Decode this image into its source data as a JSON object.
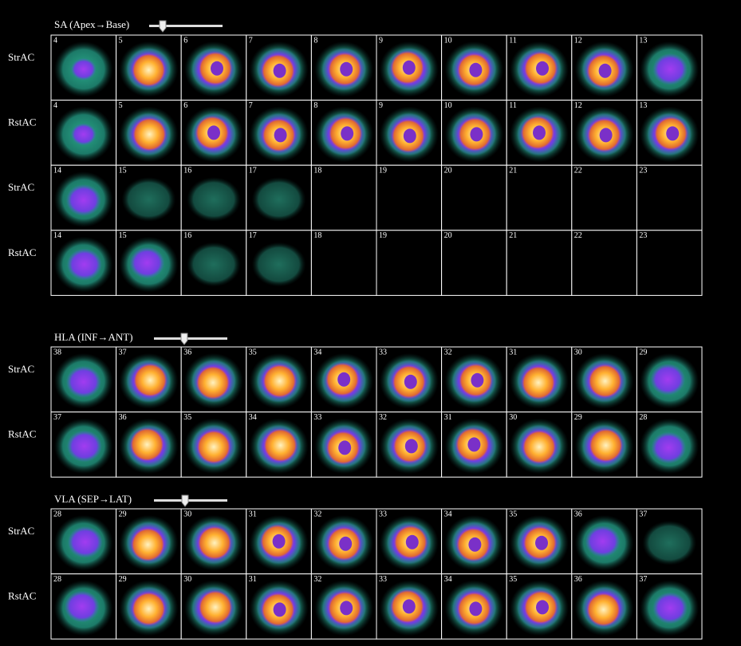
{
  "sections": [
    {
      "title": "SA (Apex→Base)",
      "rows": [
        {
          "label": "StrAC",
          "cells": [
            4,
            5,
            6,
            7,
            8,
            9,
            10,
            11,
            12,
            13
          ]
        },
        {
          "label": "RstAC",
          "cells": [
            4,
            5,
            6,
            7,
            8,
            9,
            10,
            11,
            12,
            13
          ]
        },
        {
          "label": "StrAC",
          "cells": [
            14,
            15,
            16,
            17,
            18,
            19,
            20,
            21,
            22,
            23
          ]
        },
        {
          "label": "RstAC",
          "cells": [
            14,
            15,
            16,
            17,
            18,
            19,
            20,
            21,
            22,
            23
          ]
        }
      ]
    },
    {
      "title": "HLA (INF→ANT)",
      "rows": [
        {
          "label": "StrAC",
          "cells": [
            38,
            37,
            36,
            35,
            34,
            33,
            32,
            31,
            30,
            29
          ]
        },
        {
          "label": "RstAC",
          "cells": [
            37,
            36,
            35,
            34,
            33,
            32,
            31,
            30,
            29,
            28
          ]
        }
      ]
    },
    {
      "title": "VLA (SEP→LAT)",
      "rows": [
        {
          "label": "StrAC",
          "cells": [
            28,
            29,
            30,
            31,
            32,
            33,
            34,
            35,
            36,
            37
          ]
        },
        {
          "label": "RstAC",
          "cells": [
            28,
            29,
            30,
            31,
            32,
            33,
            34,
            35,
            36,
            37
          ]
        }
      ]
    }
  ]
}
